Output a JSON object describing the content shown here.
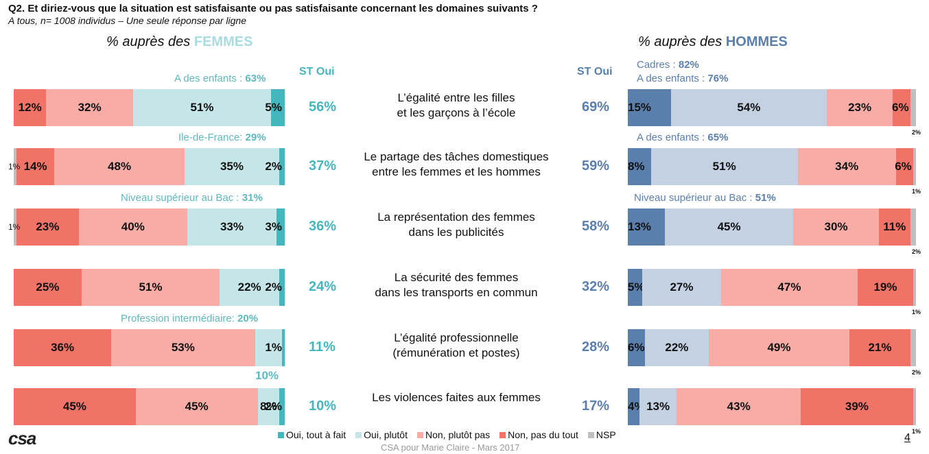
{
  "question": "Q2. Et diriez-vous que la situation est satisfaisante ou pas satisfaisante concernant les domaines suivants ?",
  "subtitle": "A tous, n= 1008 individus – Une seule réponse par ligne",
  "women_header": {
    "prefix": "% auprès des ",
    "word": "FEMMES"
  },
  "men_header": {
    "prefix": "% auprès des ",
    "word": "HOMMES"
  },
  "st_oui_label": "ST Oui",
  "colors": {
    "oui_tout_a_fait_f": "#44b6bd",
    "oui_plutot_f": "#c5e6e8",
    "oui_tout_a_fait_h": "#5b7fac",
    "oui_plutot_h": "#c3d1e3",
    "non_plutot_pas": "#f8aca5",
    "non_pas_du_tout": "#f17367",
    "nsp": "#bfbfbf"
  },
  "chart_data": {
    "type": "bar",
    "orientation": "horizontal-stacked",
    "categories": [
      "L’égalité entre les filles et les garçons à l’école",
      "Le partage des tâches domestiques entre les femmes et les hommes",
      "La représentation des femmes dans les publicités",
      "La sécurité des femmes dans les transports en commun",
      "L’égalité professionnelle (rémunération et postes)",
      "Les violences faites aux femmes"
    ],
    "category_lines": [
      [
        "L’égalité entre les filles",
        "et les garçons à l’école"
      ],
      [
        "Le partage des tâches domestiques",
        "entre les femmes et les hommes"
      ],
      [
        "La représentation des femmes",
        "dans les publicités"
      ],
      [
        "La sécurité des femmes",
        "dans les transports en commun"
      ],
      [
        "L’égalité professionnelle",
        "(rémunération et postes)"
      ],
      [
        "Les violences faites aux femmes"
      ]
    ],
    "legend": [
      "Oui, tout à fait",
      "Oui, plutôt",
      "Non, plutôt pas",
      "Non, pas du tout",
      "NSP"
    ],
    "women": {
      "st_oui": [
        "56%",
        "37%",
        "36%",
        "24%",
        "11%",
        "10%"
      ],
      "series": {
        "nsp": [
          0,
          1,
          1,
          0,
          0,
          0
        ],
        "non_pas_du_tout": [
          12,
          14,
          23,
          25,
          36,
          45
        ],
        "non_plutot_pas": [
          32,
          48,
          40,
          51,
          53,
          45
        ],
        "oui_plutot": [
          51,
          35,
          33,
          22,
          10,
          8
        ],
        "oui_tout_a_fait": [
          5,
          2,
          3,
          2,
          1,
          2
        ]
      },
      "notes": [
        {
          "label": "A des enfants : ",
          "value": "63%"
        },
        {
          "label": "Ile-de-France: ",
          "value": "29%"
        },
        {
          "label": "Niveau supérieur au Bac : ",
          "value": "31%"
        },
        null,
        {
          "label": "Profession intermédiaire: ",
          "value": "20%"
        },
        null
      ]
    },
    "men": {
      "st_oui": [
        "69%",
        "59%",
        "58%",
        "32%",
        "28%",
        "17%"
      ],
      "series": {
        "oui_tout_a_fait": [
          15,
          8,
          13,
          5,
          6,
          4
        ],
        "oui_plutot": [
          54,
          51,
          45,
          27,
          22,
          13
        ],
        "non_plutot_pas": [
          23,
          34,
          30,
          47,
          49,
          43
        ],
        "non_pas_du_tout": [
          6,
          6,
          11,
          19,
          21,
          39
        ],
        "nsp": [
          2,
          1,
          2,
          1,
          2,
          1
        ]
      },
      "notes": [
        {
          "lines": [
            {
              "label": "Cadres : ",
              "value": "82%"
            },
            {
              "label": "A des enfants : ",
              "value": "76%"
            }
          ]
        },
        {
          "lines": [
            {
              "label": "A des enfants : ",
              "value": "65%"
            }
          ]
        },
        {
          "lines": [
            {
              "label": "Niveau supérieur au Bac : ",
              "value": "51%"
            }
          ]
        },
        null,
        null,
        null
      ]
    }
  },
  "footer": "CSA pour Marie Claire - Mars 2017",
  "page_number": "4",
  "logo_text": "csa"
}
